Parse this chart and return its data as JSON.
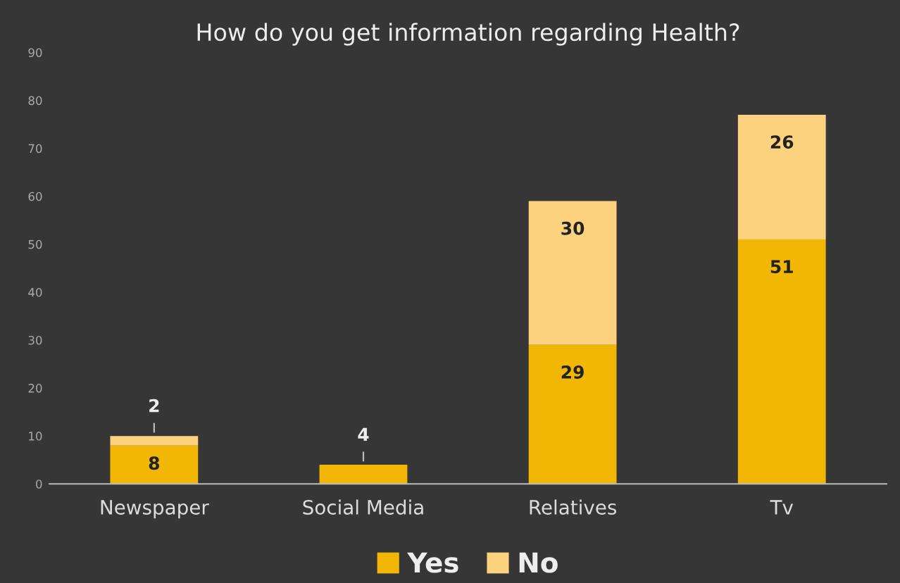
{
  "chart_data": {
    "type": "bar",
    "title": "How do you get information regarding Health?",
    "categories": [
      "Newspaper",
      "Social Media",
      "Relatives",
      "Tv"
    ],
    "stacked": true,
    "series": [
      {
        "name": "Yes",
        "color": "#f2b705",
        "values": [
          8,
          4,
          29,
          51
        ],
        "value_labels": [
          "8",
          "4",
          "29",
          "51"
        ]
      },
      {
        "name": "No",
        "color": "#fcd27e",
        "values": [
          2,
          0,
          30,
          26
        ],
        "value_labels": [
          "2",
          null,
          "30",
          "26"
        ]
      }
    ],
    "ylim": [
      0,
      90
    ],
    "yticks": [
      0,
      10,
      20,
      30,
      40,
      50,
      60,
      70,
      80,
      90
    ],
    "grid": false,
    "legend": "bottom"
  }
}
